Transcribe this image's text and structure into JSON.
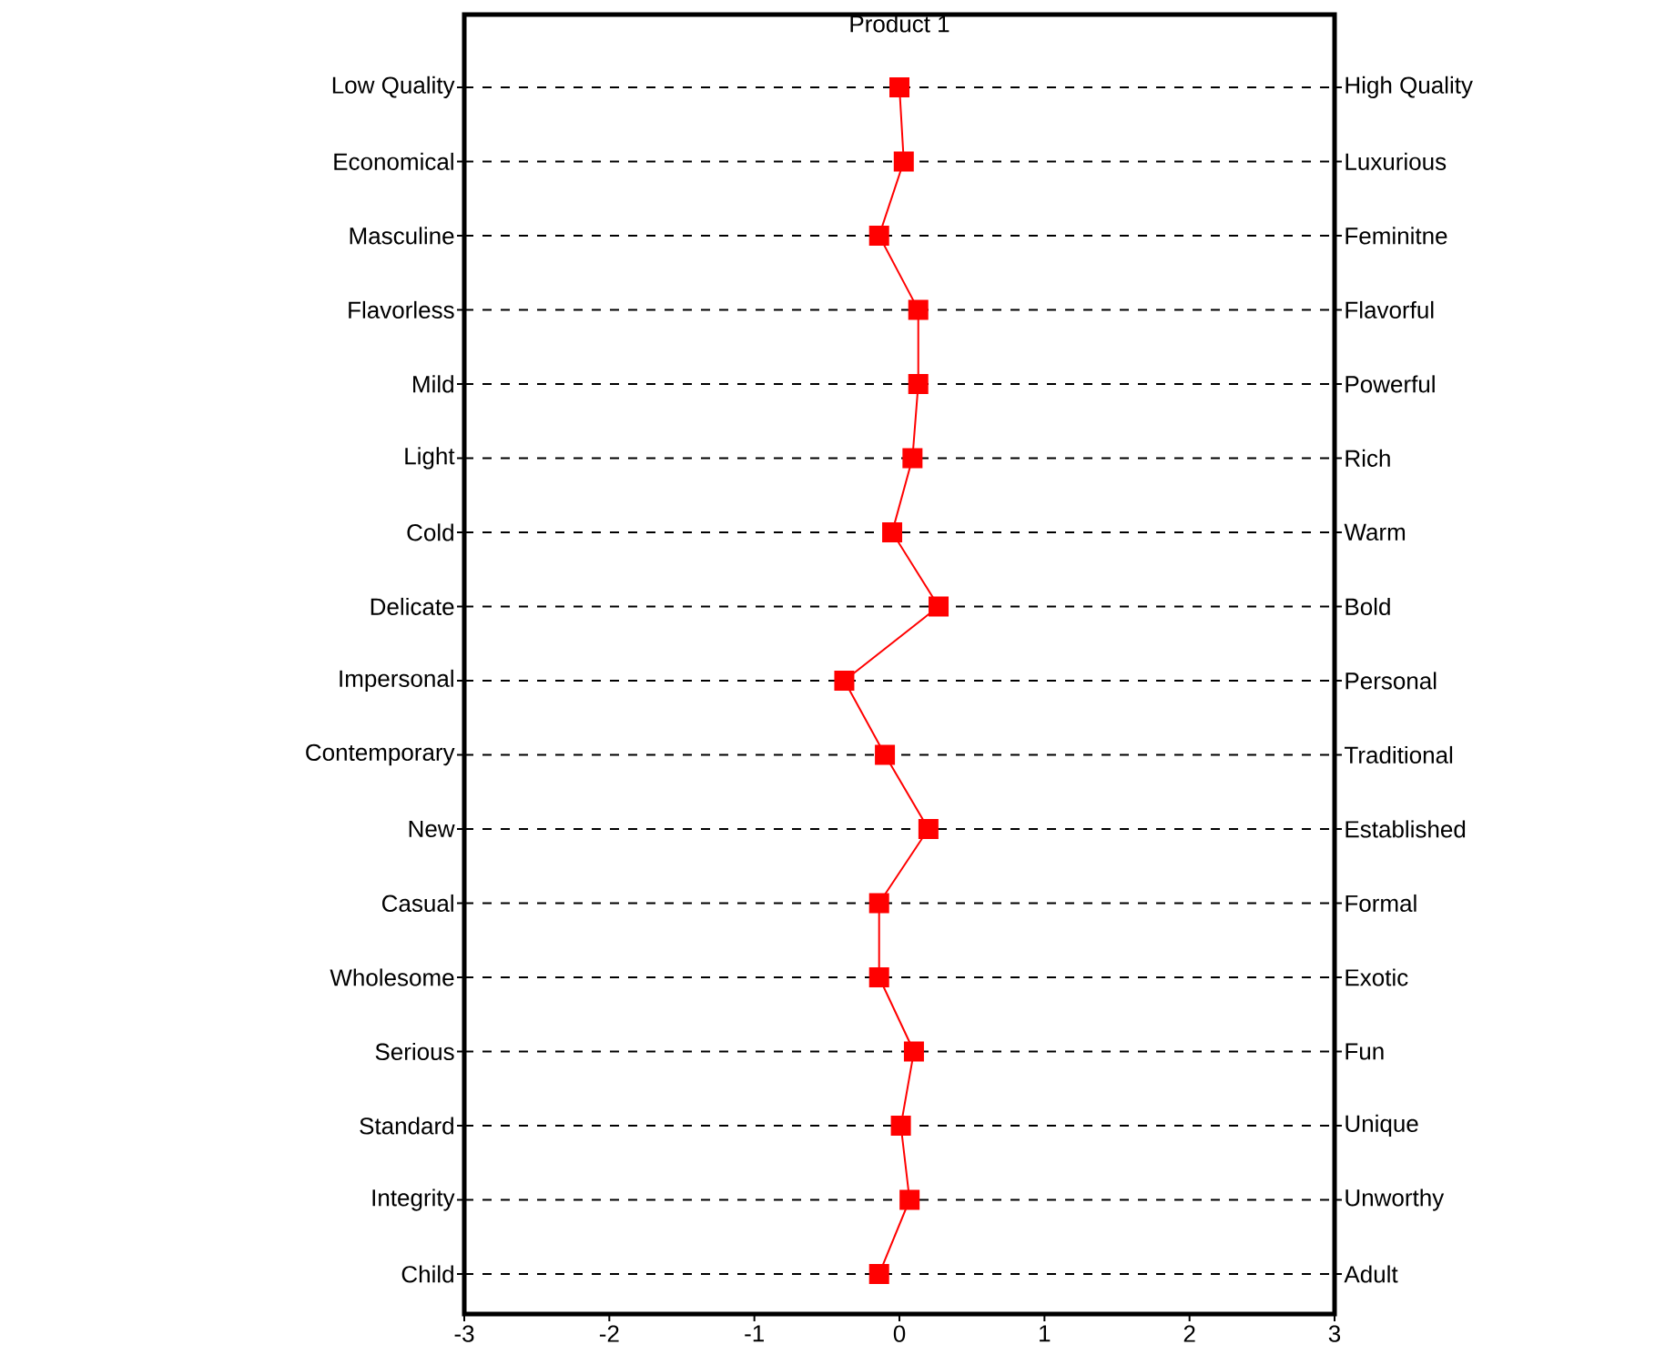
{
  "chart_data": {
    "type": "line",
    "orientation": "horizontal",
    "title": "Product 1",
    "categories": [
      "Low Quality",
      "Economical",
      "Masculine",
      "Flavorless",
      "Mild",
      "Light",
      "Cold",
      "Delicate",
      "Impersonal",
      "Contemporary",
      "New",
      "Casual",
      "Wholesome",
      "Serious",
      "Standard",
      "Integrity",
      "Child"
    ],
    "y2_categories": [
      "High Quality",
      "Luxurious",
      "Feminitne",
      "Flavorful",
      "Powerful",
      "Rich",
      "Warm",
      "Bold",
      "Personal",
      "Traditional",
      "Established",
      "Formal",
      "Exotic",
      "Fun",
      "Unique",
      "Unworthy",
      "Adult"
    ],
    "values": [
      0.0,
      0.03,
      -0.14,
      0.13,
      0.13,
      0.09,
      -0.05,
      0.27,
      -0.38,
      -0.1,
      0.2,
      -0.14,
      -0.14,
      0.1,
      0.01,
      0.07,
      -0.14
    ],
    "color": "#ff0000",
    "marker": "square",
    "line_style": "solid",
    "grid": "y",
    "xlim": [
      -3,
      3
    ],
    "xticks": [
      -3,
      -2,
      -1,
      0,
      1,
      2,
      3
    ]
  }
}
